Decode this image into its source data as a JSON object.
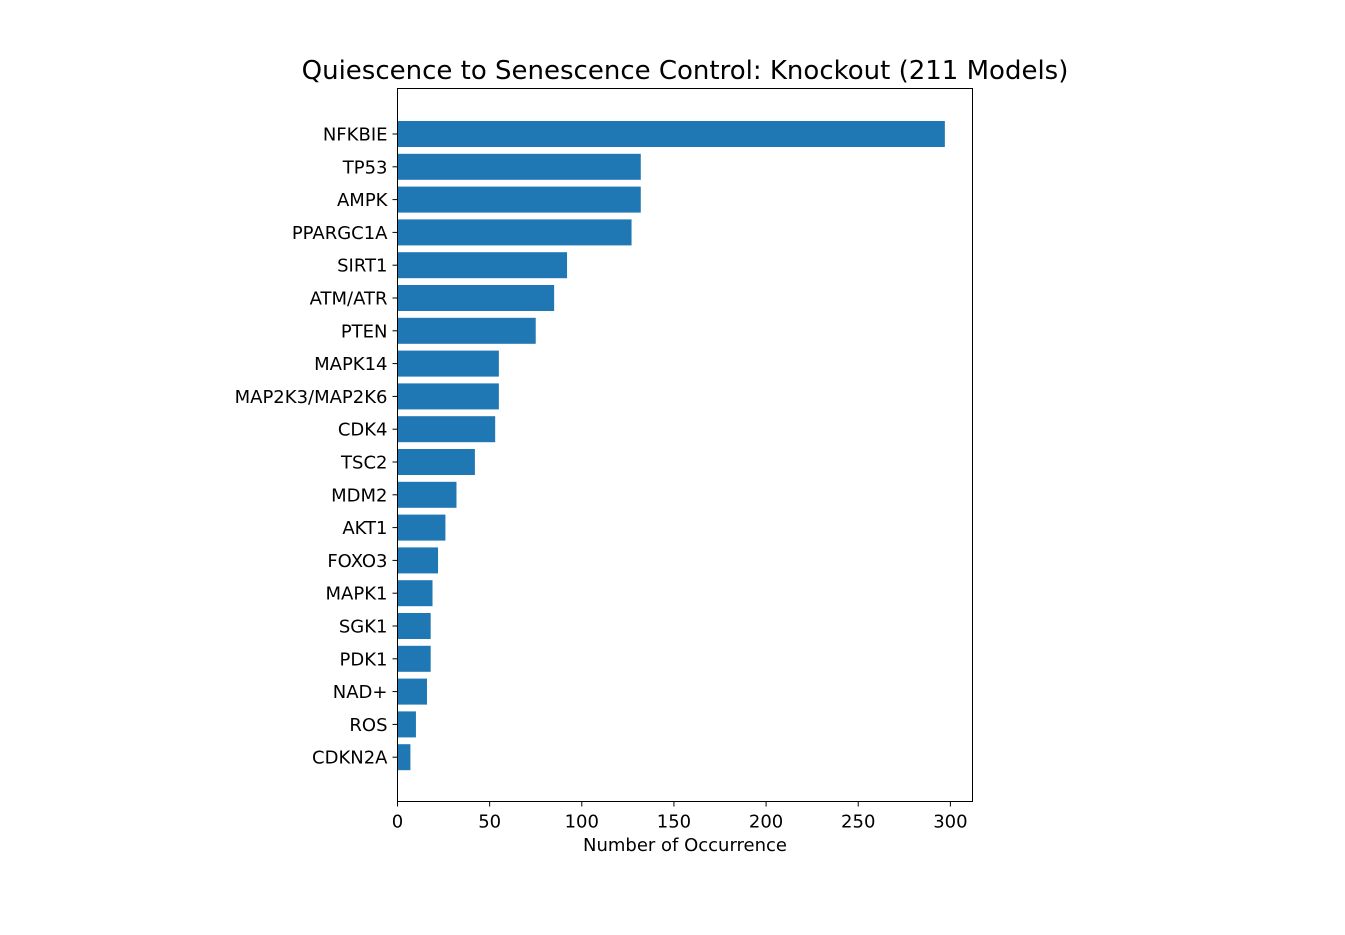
{
  "chart_data": {
    "type": "bar",
    "orientation": "horizontal",
    "title": "Quiescence to Senescence Control: Knockout (211 Models)",
    "xlabel": "Number of Occurrence",
    "ylabel": "",
    "xlim": [
      0,
      312
    ],
    "xticks": [
      0,
      50,
      100,
      150,
      200,
      250,
      300
    ],
    "grid": false,
    "legend": "none",
    "bar_color": "#1f77b4",
    "categories": [
      "NFKBIE",
      "TP53",
      "AMPK",
      "PPARGC1A",
      "SIRT1",
      "ATM/ATR",
      "PTEN",
      "MAPK14",
      "MAP2K3/MAP2K6",
      "CDK4",
      "TSC2",
      "MDM2",
      "AKT1",
      "FOXO3",
      "MAPK1",
      "SGK1",
      "PDK1",
      "NAD+",
      "ROS",
      "CDKN2A"
    ],
    "values": [
      297,
      132,
      132,
      127,
      92,
      85,
      75,
      55,
      55,
      53,
      42,
      32,
      26,
      22,
      19,
      18,
      18,
      16,
      10,
      7
    ]
  }
}
